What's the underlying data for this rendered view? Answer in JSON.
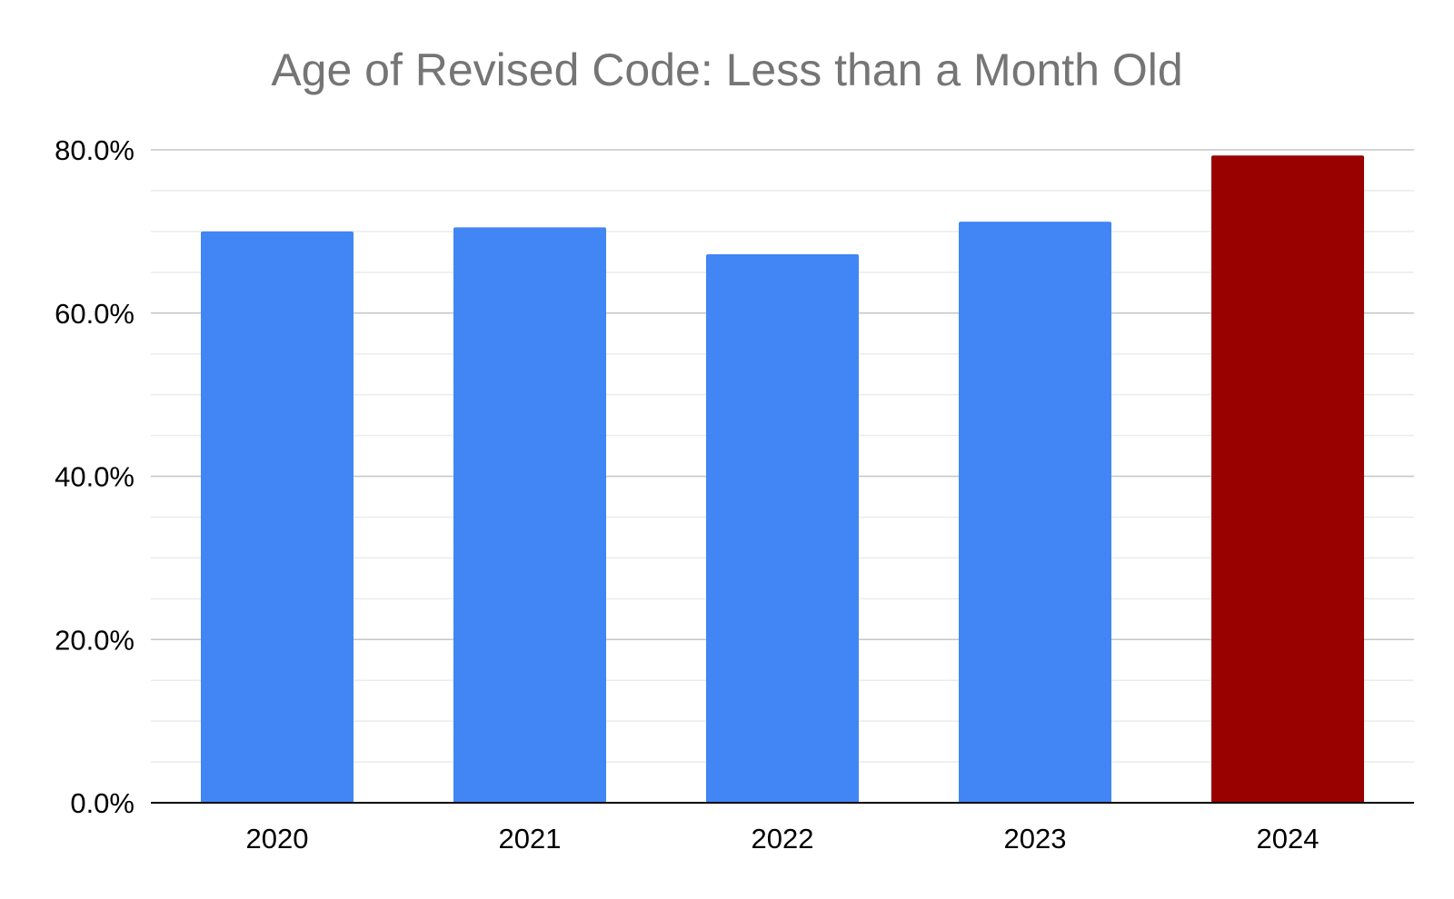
{
  "chart_data": {
    "type": "bar",
    "title": "Age of Revised Code: Less than a Month Old",
    "xlabel": "",
    "ylabel": "",
    "categories": [
      "2020",
      "2021",
      "2022",
      "2023",
      "2024"
    ],
    "values": [
      0.7,
      0.705,
      0.672,
      0.712,
      0.793
    ],
    "ylim": [
      0,
      0.8
    ],
    "yticks": [
      "0.0%",
      "20.0%",
      "40.0%",
      "60.0%",
      "80.0%"
    ],
    "grid": true,
    "legend": "none",
    "colors": {
      "default_bar": "#4285f4",
      "highlight_bar": "#990000",
      "title_text": "#757575",
      "major_grid": "#c6c6c6",
      "minor_grid": "#ebebeb",
      "axis_line": "#000000"
    },
    "highlight_index": 4
  }
}
